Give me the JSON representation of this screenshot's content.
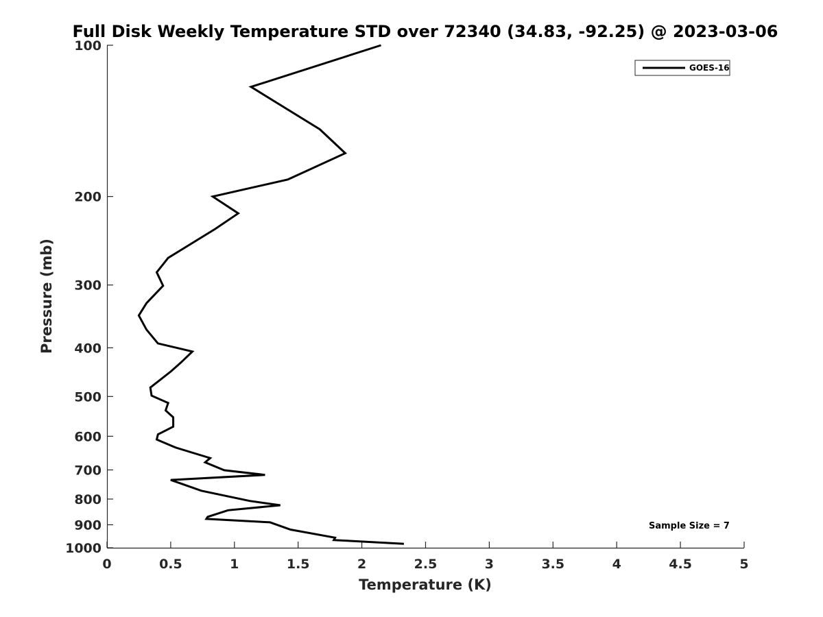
{
  "chart_data": {
    "type": "line",
    "title": "Full Disk Weekly Temperature STD over 72340 (34.83, -92.25) @ 2023-03-06",
    "xlabel": "Temperature (K)",
    "ylabel": "Pressure (mb)",
    "xlim": [
      0,
      5
    ],
    "ylim": [
      100,
      1000
    ],
    "y_scale": "log",
    "y_reversed": true,
    "x_ticks": [
      "0",
      "0.5",
      "1",
      "1.5",
      "2",
      "2.5",
      "3",
      "3.5",
      "4",
      "4.5",
      "5"
    ],
    "y_ticks": [
      "100",
      "200",
      "300",
      "400",
      "500",
      "600",
      "700",
      "800",
      "900",
      "1000"
    ],
    "grid": false,
    "legend_position": "top-right",
    "annotation": "Sample Size = 7",
    "series": [
      {
        "name": "GOES-16",
        "color": "#000000",
        "x": [
          2.15,
          1.13,
          1.67,
          1.87,
          1.42,
          0.83,
          1.03,
          0.85,
          0.48,
          0.39,
          0.44,
          0.31,
          0.25,
          0.31,
          0.4,
          0.67,
          0.58,
          0.5,
          0.34,
          0.35,
          0.48,
          0.46,
          0.52,
          0.52,
          0.4,
          0.39,
          0.54,
          0.81,
          0.77,
          0.92,
          1.24,
          0.5,
          0.74,
          1.12,
          1.36,
          0.95,
          0.79,
          0.78,
          1.28,
          1.44,
          1.79,
          1.78,
          1.87,
          2.33
        ],
        "y": [
          100,
          121,
          147,
          164,
          185,
          200,
          216,
          232,
          265,
          283,
          301,
          326,
          345,
          368,
          392,
          407,
          428,
          446,
          480,
          498,
          515,
          533,
          550,
          574,
          595,
          609,
          632,
          663,
          676,
          701,
          716,
          733,
          770,
          807,
          823,
          842,
          868,
          876,
          890,
          920,
          955,
          965,
          968,
          982
        ]
      }
    ]
  }
}
